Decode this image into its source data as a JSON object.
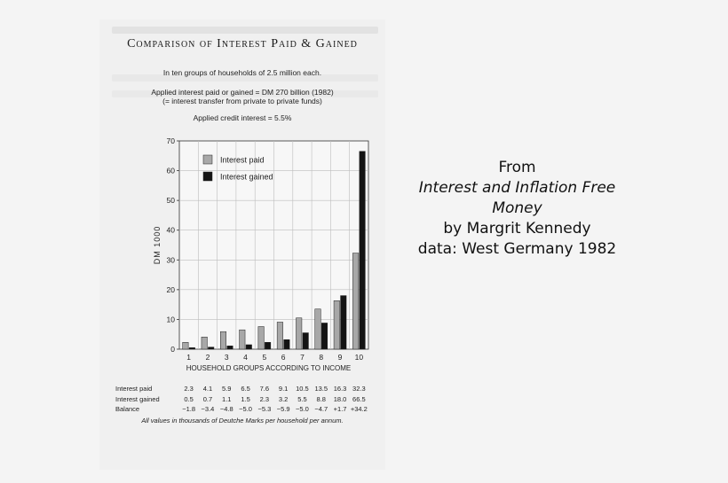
{
  "chart_data": {
    "type": "bar",
    "title": "Comparison of Interest Paid & Gained",
    "subtitle_lines": [
      "In ten groups of households of 2.5 million each.",
      "Applied interest paid or gained = DM 270 billion (1982)",
      "(= interest transfer from private to private funds)",
      "Applied credit interest = 5.5%"
    ],
    "xlabel": "HOUSEHOLD GROUPS ACCORDING TO INCOME",
    "ylabel": "DM 1000",
    "ylim": [
      0,
      70
    ],
    "yticks": [
      "0",
      "10",
      "20",
      "30",
      "40",
      "50",
      "60",
      "70"
    ],
    "categories": [
      "1",
      "2",
      "3",
      "4",
      "5",
      "6",
      "7",
      "8",
      "9",
      "10"
    ],
    "series": [
      {
        "name": "Interest paid",
        "color": "#a8a8a8",
        "values": [
          2.3,
          4.1,
          5.9,
          6.5,
          7.6,
          9.1,
          10.5,
          13.5,
          16.3,
          32.3
        ]
      },
      {
        "name": "Interest gained",
        "color": "#141414",
        "values": [
          0.5,
          0.7,
          1.1,
          1.5,
          2.3,
          3.2,
          5.5,
          8.8,
          18.0,
          66.5
        ]
      }
    ],
    "legend": "top-left",
    "grid": true,
    "table": {
      "rows": [
        {
          "label": "Interest paid",
          "values": [
            "2.3",
            "4.1",
            "5.9",
            "6.5",
            "7.6",
            "9.1",
            "10.5",
            "13.5",
            "16.3",
            "32.3"
          ]
        },
        {
          "label": "Interest gained",
          "values": [
            "0.5",
            "0.7",
            "1.1",
            "1.5",
            "2.3",
            "3.2",
            "5.5",
            "8.8",
            "18.0",
            "66.5"
          ]
        },
        {
          "label": "Balance",
          "values": [
            "−1.8",
            "−3.4",
            "−4.8",
            "−5.0",
            "−5.3",
            "−5.9",
            "−5.0",
            "−4.7",
            "+1.7",
            "+34.2"
          ]
        }
      ]
    },
    "footnote": "All values in thousands of Deutche Marks per household per annum."
  },
  "caption": {
    "line1": "From",
    "line2": "Interest and Inflation Free",
    "line3": "Money",
    "line4": "by Margrit Kennedy",
    "line5": "data: West Germany 1982"
  }
}
